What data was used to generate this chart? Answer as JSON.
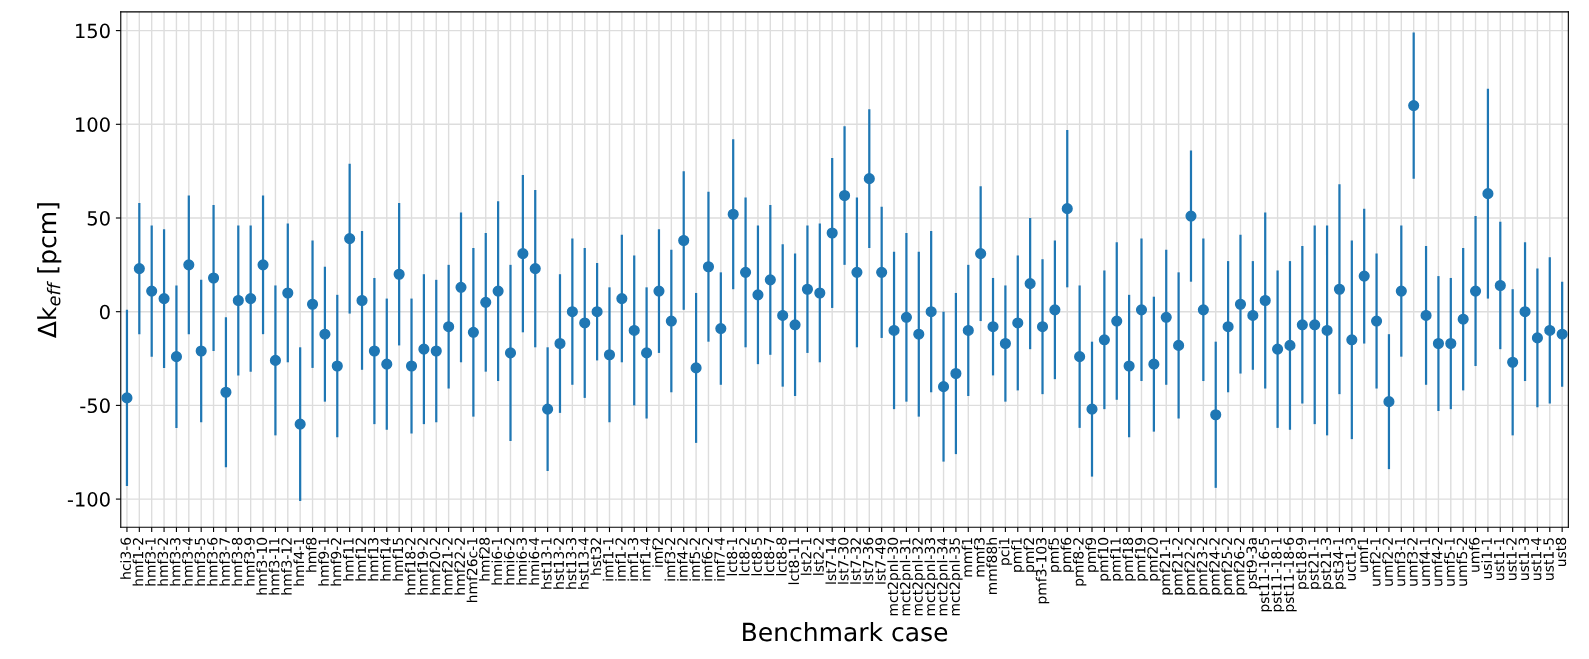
{
  "chart_data": {
    "type": "scatter",
    "xlabel": "Benchmark case",
    "ylabel": "Δk$_{eff}$ [pcm]",
    "categories": [
      "hci3-6",
      "hmf1-2",
      "hmf3-1",
      "hmf3-2",
      "hmf3-3",
      "hmf3-4",
      "hmf3-5",
      "hmf3-6",
      "hmf3-7",
      "hmf3-8",
      "hmf3-9",
      "hmf3-10",
      "hmf3-11",
      "hmf3-12",
      "hmf4-1",
      "hmf8",
      "hmf9-1",
      "hmf9-2",
      "hmf11",
      "hmf12",
      "hmf13",
      "hmf14",
      "hmf15",
      "hmf18-2",
      "hmf19-2",
      "hmf20-2",
      "hmf21-2",
      "hmf22-2",
      "hmf26c-1",
      "hmf28",
      "hmi6-1",
      "hmi6-2",
      "hmi6-3",
      "hmi6-4",
      "hst13-1",
      "hst13-2",
      "hst13-3",
      "hst13-4",
      "hst32",
      "imf1-1",
      "imf1-2",
      "imf1-3",
      "imf1-4",
      "imf2",
      "imf3-2",
      "imf4-2",
      "imf5-2",
      "imf6-2",
      "imf7-4",
      "lct8-1",
      "lct8-2",
      "lct8-5",
      "lct8-7",
      "lct8-8",
      "lct8-11",
      "lst2-1",
      "lst2-2",
      "lst7-14",
      "lst7-30",
      "lst7-32",
      "lst7-36",
      "lst7-49",
      "mct2pnl-30",
      "mct2pnl-31",
      "mct2pnl-32",
      "mct2pnl-33",
      "mct2pnl-34",
      "mct2pnl-35",
      "mmf1",
      "mmf3",
      "mmf88h",
      "pci1",
      "pmf1",
      "pmf2",
      "pmf3-103",
      "pmf5",
      "pmf6",
      "pmf8-2",
      "pmf9",
      "pmf10",
      "pmf11",
      "pmf18",
      "pmf19",
      "pmf20",
      "pmf21-1",
      "pmf21-2",
      "pmf22-2",
      "pmf23-2",
      "pmf24-2",
      "pmf25-2",
      "pmf26-2",
      "pst9-3a",
      "pst11-16-5",
      "pst11-18-1",
      "pst11-18-6",
      "pst18-9",
      "pst21-1",
      "pst21-3",
      "pst34-1",
      "uct1-3",
      "umf1",
      "umf2-1",
      "umf2-2",
      "umf3-1",
      "umf3-2",
      "umf4-1",
      "umf4-2",
      "umf5-1",
      "umf5-2",
      "umf6",
      "usi1-1",
      "ust1-1",
      "ust1-2",
      "ust1-3",
      "ust1-4",
      "ust1-5",
      "ust8"
    ],
    "series": [
      {
        "color": "#1f77b4",
        "values": [
          -46,
          23,
          11,
          7,
          -24,
          25,
          -21,
          18,
          -43,
          6,
          7,
          25,
          -26,
          10,
          -60,
          4,
          -12,
          -29,
          39,
          6,
          -21,
          -28,
          20,
          -29,
          -20,
          -21,
          -8,
          13,
          -11,
          5,
          11,
          -22,
          31,
          23,
          -52,
          -17,
          0,
          -6,
          0,
          -23,
          7,
          -10,
          -22,
          11,
          -5,
          38,
          -30,
          24,
          -9,
          52,
          21,
          9,
          17,
          -2,
          -7,
          12,
          10,
          42,
          62,
          21,
          71,
          21,
          -10,
          -3,
          -12,
          0,
          -40,
          -33,
          -10,
          31,
          -8,
          -17,
          -6,
          15,
          -8,
          1,
          55,
          -24,
          -52,
          -15,
          -5,
          -29,
          1,
          -28,
          -3,
          -18,
          51,
          1,
          -55,
          -8,
          4,
          -2,
          6,
          -20,
          -18,
          -7,
          -7,
          -10,
          12,
          -15,
          19,
          -5,
          -48,
          11,
          110,
          -2,
          -17,
          -17,
          -4,
          11,
          63,
          14,
          -27,
          0,
          -14,
          -10,
          -12
        ],
        "errors": [
          47,
          35,
          35,
          37,
          38,
          37,
          38,
          39,
          40,
          40,
          39,
          37,
          40,
          37,
          41,
          34,
          36,
          38,
          40,
          37,
          39,
          35,
          38,
          36,
          40,
          38,
          33,
          40,
          45,
          37,
          48,
          47,
          42,
          42,
          33,
          37,
          39,
          40,
          26,
          36,
          34,
          40,
          35,
          33,
          38,
          37,
          40,
          40,
          30,
          40,
          40,
          37,
          40,
          38,
          38,
          34,
          37,
          40,
          37,
          40,
          37,
          35,
          42,
          45,
          44,
          43,
          40,
          43,
          35,
          36,
          26,
          31,
          36,
          35,
          36,
          37,
          42,
          38,
          36,
          37,
          42,
          38,
          38,
          36,
          36,
          39,
          35,
          38,
          39,
          35,
          37,
          29,
          47,
          42,
          45,
          42,
          53,
          56,
          56,
          53,
          36,
          36,
          36,
          35,
          39,
          37,
          36,
          35,
          38,
          40,
          56,
          34,
          39,
          37,
          37,
          39,
          28
        ]
      }
    ],
    "ylim": [
      -115,
      160
    ],
    "yticks": [
      -100,
      -50,
      0,
      50,
      100,
      150
    ],
    "grid": true,
    "marker": "circle"
  }
}
